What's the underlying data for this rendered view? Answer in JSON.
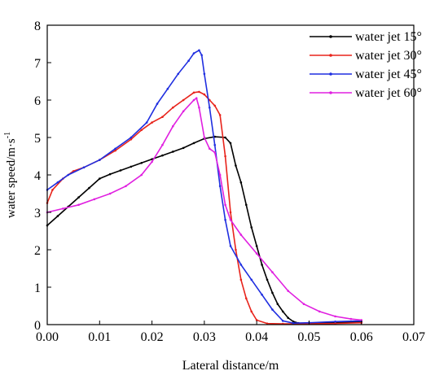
{
  "chart_data": {
    "type": "line",
    "title": "",
    "xlabel": "Lateral distance/m",
    "ylabel": "water speed/m·s",
    "ylabel_sup": "-1",
    "xlim": [
      0,
      0.07
    ],
    "ylim": [
      0,
      8
    ],
    "x_ticks": [
      "0.00",
      "0.01",
      "0.02",
      "0.03",
      "0.04",
      "0.05",
      "0.06",
      "0.07"
    ],
    "y_ticks": [
      "0",
      "1",
      "2",
      "3",
      "4",
      "5",
      "6",
      "7",
      "8"
    ],
    "grid": false,
    "legend_position": "top-right",
    "series": [
      {
        "name": "water jet  15°",
        "color": "#000000",
        "points": [
          [
            0.0,
            2.65
          ],
          [
            0.002,
            2.9
          ],
          [
            0.004,
            3.15
          ],
          [
            0.006,
            3.4
          ],
          [
            0.008,
            3.65
          ],
          [
            0.01,
            3.9
          ],
          [
            0.012,
            4.02
          ],
          [
            0.014,
            4.12
          ],
          [
            0.016,
            4.22
          ],
          [
            0.018,
            4.32
          ],
          [
            0.02,
            4.42
          ],
          [
            0.022,
            4.52
          ],
          [
            0.024,
            4.62
          ],
          [
            0.026,
            4.72
          ],
          [
            0.028,
            4.85
          ],
          [
            0.03,
            4.97
          ],
          [
            0.032,
            5.02
          ],
          [
            0.034,
            5.0
          ],
          [
            0.035,
            4.85
          ],
          [
            0.036,
            4.25
          ],
          [
            0.037,
            3.8
          ],
          [
            0.038,
            3.2
          ],
          [
            0.039,
            2.6
          ],
          [
            0.04,
            2.1
          ],
          [
            0.041,
            1.6
          ],
          [
            0.042,
            1.2
          ],
          [
            0.043,
            0.85
          ],
          [
            0.044,
            0.55
          ],
          [
            0.045,
            0.35
          ],
          [
            0.046,
            0.18
          ],
          [
            0.047,
            0.08
          ],
          [
            0.048,
            0.04
          ],
          [
            0.05,
            0.03
          ],
          [
            0.055,
            0.05
          ],
          [
            0.06,
            0.08
          ]
        ]
      },
      {
        "name": "water jet  30°",
        "color": "#e8231b",
        "points": [
          [
            0.0,
            3.25
          ],
          [
            0.001,
            3.6
          ],
          [
            0.003,
            3.9
          ],
          [
            0.005,
            4.1
          ],
          [
            0.007,
            4.2
          ],
          [
            0.01,
            4.4
          ],
          [
            0.013,
            4.65
          ],
          [
            0.016,
            4.95
          ],
          [
            0.018,
            5.2
          ],
          [
            0.02,
            5.4
          ],
          [
            0.022,
            5.55
          ],
          [
            0.024,
            5.8
          ],
          [
            0.026,
            6.0
          ],
          [
            0.028,
            6.2
          ],
          [
            0.029,
            6.22
          ],
          [
            0.03,
            6.15
          ],
          [
            0.031,
            6.0
          ],
          [
            0.032,
            5.85
          ],
          [
            0.033,
            5.6
          ],
          [
            0.034,
            4.5
          ],
          [
            0.035,
            3.0
          ],
          [
            0.036,
            2.0
          ],
          [
            0.037,
            1.2
          ],
          [
            0.038,
            0.7
          ],
          [
            0.039,
            0.35
          ],
          [
            0.04,
            0.12
          ],
          [
            0.042,
            0.03
          ],
          [
            0.045,
            0.02
          ],
          [
            0.05,
            0.02
          ],
          [
            0.055,
            0.03
          ],
          [
            0.06,
            0.05
          ]
        ]
      },
      {
        "name": "water jet  45°",
        "color": "#1f2ee0",
        "points": [
          [
            0.0,
            3.6
          ],
          [
            0.002,
            3.8
          ],
          [
            0.004,
            4.0
          ],
          [
            0.007,
            4.2
          ],
          [
            0.01,
            4.4
          ],
          [
            0.013,
            4.7
          ],
          [
            0.016,
            5.0
          ],
          [
            0.019,
            5.4
          ],
          [
            0.021,
            5.9
          ],
          [
            0.023,
            6.3
          ],
          [
            0.025,
            6.7
          ],
          [
            0.027,
            7.05
          ],
          [
            0.028,
            7.25
          ],
          [
            0.029,
            7.33
          ],
          [
            0.0295,
            7.2
          ],
          [
            0.03,
            6.7
          ],
          [
            0.031,
            5.8
          ],
          [
            0.032,
            4.8
          ],
          [
            0.033,
            3.7
          ],
          [
            0.034,
            2.8
          ],
          [
            0.035,
            2.1
          ],
          [
            0.037,
            1.6
          ],
          [
            0.039,
            1.2
          ],
          [
            0.041,
            0.8
          ],
          [
            0.043,
            0.4
          ],
          [
            0.045,
            0.1
          ],
          [
            0.047,
            0.04
          ],
          [
            0.05,
            0.05
          ],
          [
            0.055,
            0.08
          ],
          [
            0.06,
            0.1
          ]
        ]
      },
      {
        "name": "water jet  60°",
        "color": "#e020e0",
        "points": [
          [
            0.0,
            3.0
          ],
          [
            0.003,
            3.1
          ],
          [
            0.006,
            3.2
          ],
          [
            0.009,
            3.35
          ],
          [
            0.012,
            3.5
          ],
          [
            0.015,
            3.7
          ],
          [
            0.018,
            4.0
          ],
          [
            0.02,
            4.35
          ],
          [
            0.022,
            4.8
          ],
          [
            0.024,
            5.3
          ],
          [
            0.026,
            5.7
          ],
          [
            0.028,
            6.0
          ],
          [
            0.0285,
            6.05
          ],
          [
            0.029,
            5.8
          ],
          [
            0.03,
            5.0
          ],
          [
            0.031,
            4.7
          ],
          [
            0.032,
            4.6
          ],
          [
            0.033,
            4.0
          ],
          [
            0.034,
            3.2
          ],
          [
            0.035,
            2.8
          ],
          [
            0.037,
            2.4
          ],
          [
            0.04,
            1.9
          ],
          [
            0.043,
            1.4
          ],
          [
            0.046,
            0.9
          ],
          [
            0.049,
            0.55
          ],
          [
            0.052,
            0.35
          ],
          [
            0.055,
            0.22
          ],
          [
            0.058,
            0.15
          ],
          [
            0.06,
            0.12
          ]
        ]
      }
    ]
  }
}
